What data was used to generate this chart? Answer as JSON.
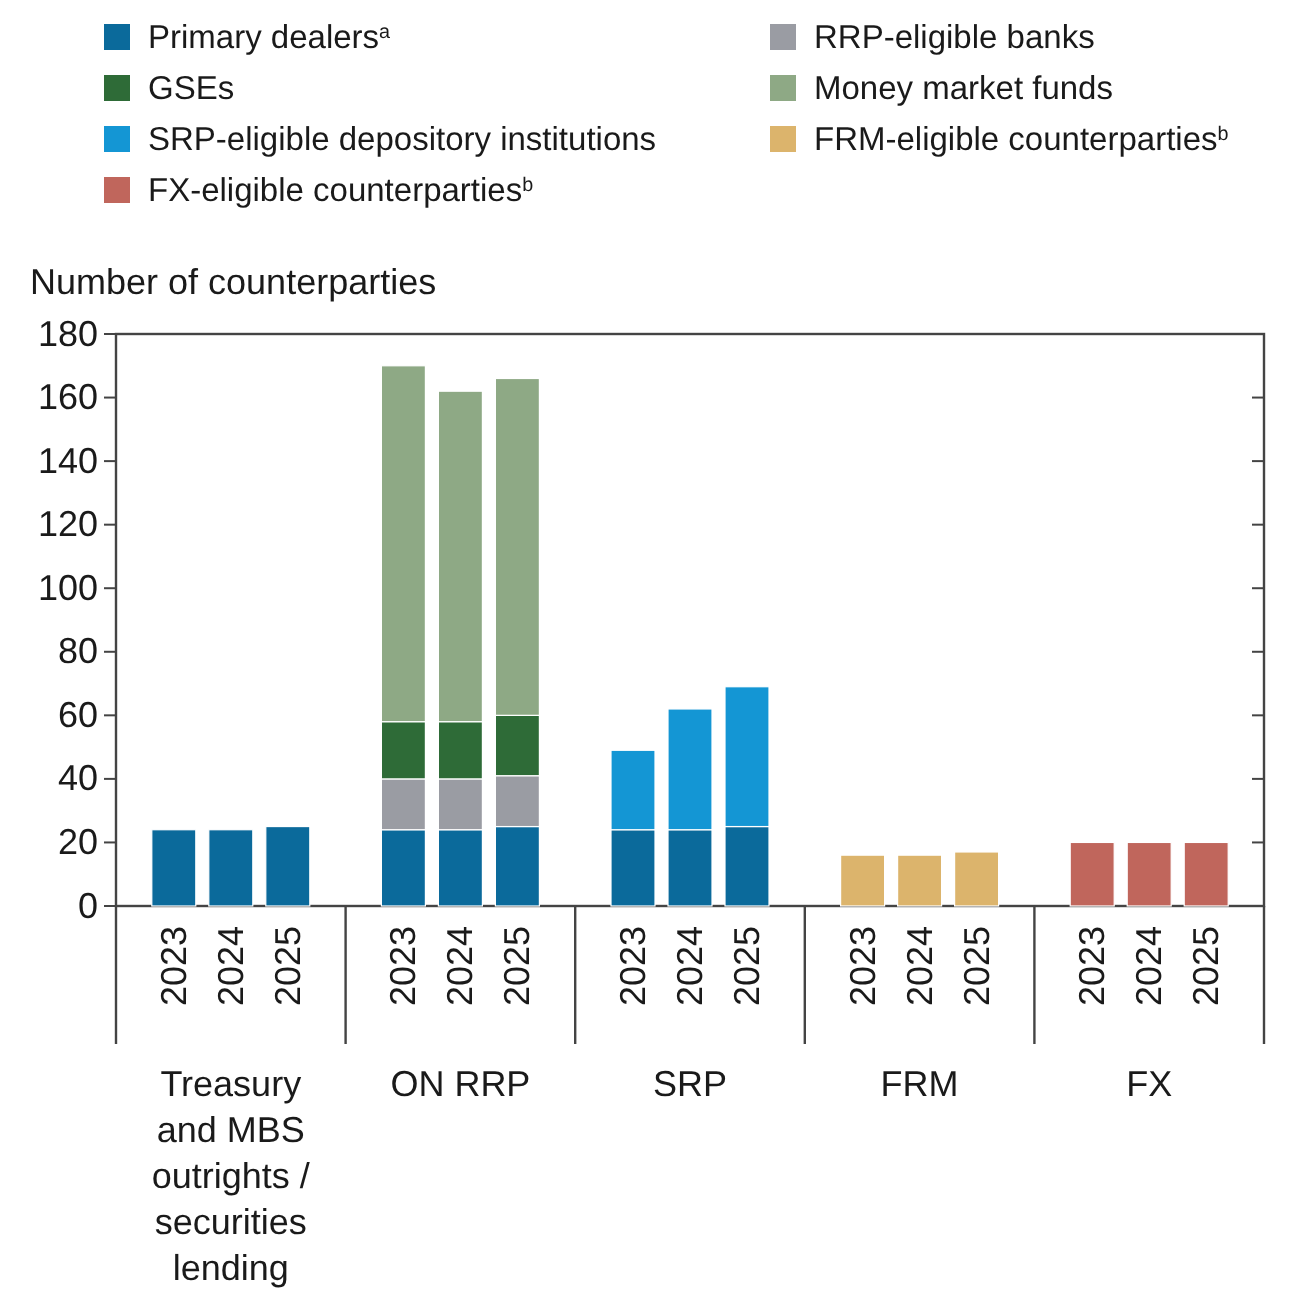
{
  "chart_data": {
    "type": "bar",
    "stacked": true,
    "ylabel": "Number of counterparties",
    "categories": [
      "2023",
      "2024",
      "2025",
      "2023",
      "2024",
      "2025",
      "2023",
      "2024",
      "2025",
      "2023",
      "2024",
      "2025",
      "2023",
      "2024",
      "2025"
    ],
    "series": [
      {
        "name": "Primary dealers$^{a}$",
        "color": "#0b6a9b",
        "values": [
          24,
          24,
          25,
          24,
          24,
          25,
          24,
          24,
          25,
          null,
          null,
          null,
          null,
          null,
          null
        ]
      },
      {
        "name": "RRP-eligible banks",
        "color": "#9a9ca3",
        "values": [
          null,
          null,
          null,
          16,
          16,
          16,
          null,
          null,
          null,
          null,
          null,
          null,
          null,
          null,
          null
        ]
      },
      {
        "name": "GSEs",
        "color": "#2e6b37",
        "values": [
          null,
          null,
          null,
          18,
          18,
          19,
          null,
          null,
          null,
          null,
          null,
          null,
          null,
          null,
          null
        ]
      },
      {
        "name": "Money market funds",
        "color": "#8ea985",
        "values": [
          null,
          null,
          null,
          112,
          104,
          106,
          null,
          null,
          null,
          null,
          null,
          null,
          null,
          null,
          null
        ]
      },
      {
        "name": "SRP-eligible depository institutions",
        "color": "#1496d4",
        "values": [
          null,
          null,
          null,
          null,
          null,
          null,
          25,
          38,
          44,
          null,
          null,
          null,
          null,
          null,
          null
        ]
      },
      {
        "name": "FRM-eligible counterparties$^{b}$",
        "color": "#dcb46c",
        "values": [
          null,
          null,
          null,
          null,
          null,
          null,
          null,
          null,
          null,
          16,
          16,
          17,
          null,
          null,
          null
        ]
      },
      {
        "name": "FX-eligible counterparties$^{b}$",
        "color": "#c0665c",
        "values": [
          null,
          null,
          null,
          null,
          null,
          null,
          null,
          null,
          null,
          null,
          null,
          null,
          20,
          20,
          20
        ]
      }
    ],
    "ylim": [
      0,
      180
    ],
    "yticks": [
      0,
      20,
      40,
      60,
      80,
      100,
      120,
      140,
      160,
      180
    ],
    "grid": false,
    "legend": "top",
    "annotations": [
      "Treasury and MBS outrights / securities lending",
      "ON RRP",
      "SRP",
      "FRM",
      "FX"
    ]
  }
}
